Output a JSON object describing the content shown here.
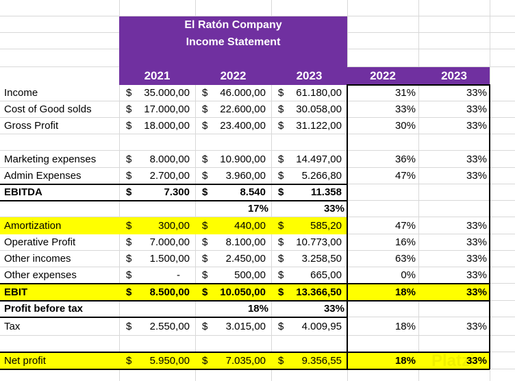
{
  "title": {
    "company": "El Ratón Company",
    "statement": "Income Statement"
  },
  "years": [
    "2021",
    "2022",
    "2023"
  ],
  "pct_years": [
    "2022",
    "2023"
  ],
  "rows": [
    {
      "label": "Income",
      "values": [
        "35.000,00",
        "46.000,00",
        "61.180,00"
      ],
      "pct": [
        "31%",
        "33%"
      ]
    },
    {
      "label": "Cost of Good solds",
      "values": [
        "17.000,00",
        "22.600,00",
        "30.058,00"
      ],
      "pct": [
        "33%",
        "33%"
      ]
    },
    {
      "label": "Gross Profit",
      "values": [
        "18.000,00",
        "23.400,00",
        "31.122,00"
      ],
      "pct": [
        "30%",
        "33%"
      ]
    },
    {
      "label": "",
      "values": [],
      "pct": []
    },
    {
      "label": "Marketing expenses",
      "values": [
        "8.000,00",
        "10.900,00",
        "14.497,00"
      ],
      "pct": [
        "36%",
        "33%"
      ]
    },
    {
      "label": "Admin Expenses",
      "values": [
        "2.700,00",
        "3.960,00",
        "5.266,80"
      ],
      "pct": [
        "47%",
        "33%"
      ]
    },
    {
      "label": "EBITDA",
      "values": [
        "7.300",
        "8.540",
        "11.358"
      ],
      "pct": []
    },
    {
      "label": "",
      "values": [
        "",
        "17%",
        "33%"
      ],
      "pct": [],
      "plain": true
    },
    {
      "label": "Amortization",
      "values": [
        "300,00",
        "440,00",
        "585,20"
      ],
      "pct": [
        "47%",
        "33%"
      ]
    },
    {
      "label": "Operative Profit",
      "values": [
        "7.000,00",
        "8.100,00",
        "10.773,00"
      ],
      "pct": [
        "16%",
        "33%"
      ]
    },
    {
      "label": "Other incomes",
      "values": [
        "1.500,00",
        "2.450,00",
        "3.258,50"
      ],
      "pct": [
        "63%",
        "33%"
      ]
    },
    {
      "label": "Other expenses",
      "values": [
        "-",
        "500,00",
        "665,00"
      ],
      "pct": [
        "0%",
        "33%"
      ]
    },
    {
      "label": "EBIT",
      "values": [
        "8.500,00",
        "10.050,00",
        "13.366,50"
      ],
      "pct": [
        "18%",
        "33%"
      ]
    },
    {
      "label": "Profit before tax",
      "values": [
        "",
        "18%",
        "33%"
      ],
      "pct": [],
      "plain": true
    },
    {
      "label": "Tax",
      "values": [
        "2.550,00",
        "3.015,00",
        "4.009,95"
      ],
      "pct": [
        "18%",
        "33%"
      ]
    },
    {
      "label": "",
      "values": [],
      "pct": []
    },
    {
      "label": "Net profit",
      "values": [
        "5.950,00",
        "7.035,00",
        "9.356,55"
      ],
      "pct": [
        "18%",
        "33%"
      ]
    }
  ],
  "currency": "$",
  "watermark": "Platzi"
}
